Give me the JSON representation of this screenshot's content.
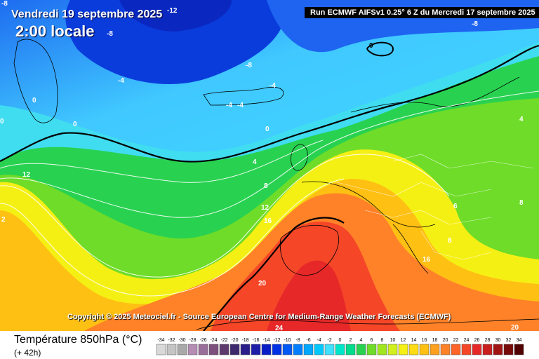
{
  "title": {
    "date": "Vendredi 19 septembre 2025",
    "time": "2:00 locale"
  },
  "run_info": "Run ECMWF AIFSv1 0.25° 6 Z du Mercredi 17 septembre 2025",
  "copyright": "Copyright © 2025 Meteociel.fr - Source European Centre for Medium-Range Weather Forecasts (ECMWF)",
  "map_labels": {
    "l_m12": "-12",
    "l_m8a": "-8",
    "l_m8b": "-8",
    "l_m8c": "-8",
    "l_m8d": "-8",
    "l_m4a": "-4",
    "l_m4b": "-4",
    "l_m4c": "-4",
    "l_m4d": "-4",
    "l_0a": "0",
    "l_0b": "0",
    "l_0c": "0",
    "l_0d": "0",
    "l_0e": "0",
    "l_4a": "4",
    "l_4b": "4",
    "l_8a": "8",
    "l_8b": "8",
    "l_8c": "8",
    "l_8d": "8",
    "l_6": "6",
    "l_12a": "12",
    "l_12b": "12",
    "l_16a": "16",
    "l_16b": "16",
    "l_20a": "20",
    "l_20b": "20",
    "l_24": "24",
    "l_2": "2"
  },
  "legend": {
    "title": "Température 850hPa (°C)",
    "subtitle": "(+ 42h)",
    "values": [
      "-34",
      "-32",
      "-30",
      "-28",
      "-26",
      "-24",
      "-22",
      "-20",
      "-18",
      "-16",
      "-14",
      "-12",
      "-10",
      "-8",
      "-6",
      "-4",
      "-2",
      "0",
      "2",
      "4",
      "6",
      "8",
      "10",
      "12",
      "14",
      "16",
      "18",
      "20",
      "22",
      "24",
      "26",
      "28",
      "30",
      "32",
      "34"
    ],
    "colors": [
      "#d9d9d9",
      "#c4c4c4",
      "#a9a9a9",
      "#b48cb4",
      "#9a6e9a",
      "#7d4f7d",
      "#5e3a6e",
      "#3d2a6e",
      "#2a1e8a",
      "#1e1ea8",
      "#0a1ec8",
      "#0032e6",
      "#005af5",
      "#0080ff",
      "#00a8ff",
      "#00c8ff",
      "#40e0ff",
      "#00e6c8",
      "#00dc8c",
      "#28d250",
      "#6edc28",
      "#a0e61e",
      "#d2f01e",
      "#f5f014",
      "#ffdc14",
      "#ffc014",
      "#ffa01e",
      "#ff8228",
      "#ff6428",
      "#f54628",
      "#e62828",
      "#c81e1e",
      "#a01414",
      "#780a0a",
      "#500000"
    ]
  }
}
